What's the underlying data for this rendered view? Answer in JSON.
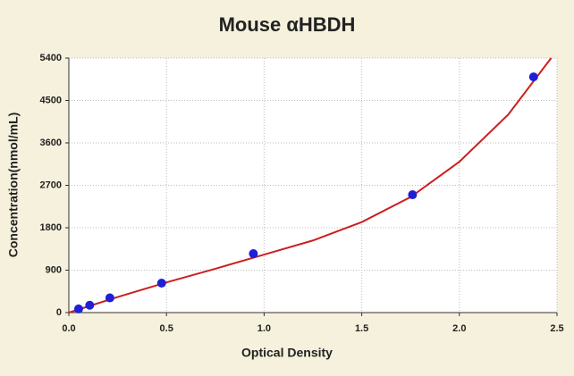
{
  "chart_data": {
    "type": "scatter",
    "title": "Mouse αHBDH",
    "x_label": "Optical Density",
    "y_label": "Concentration(nmol/mL)",
    "series": [
      {
        "color": "#1f1fd6",
        "x": [
          0.05,
          0.107,
          0.21,
          0.475,
          0.945,
          1.76,
          2.38
        ],
        "values": [
          78,
          156,
          312,
          625,
          1250,
          2500,
          5000
        ]
      }
    ],
    "curve": {
      "color": "#cc1f1f",
      "x": [
        0,
        0.25,
        0.5,
        0.75,
        1.0,
        1.25,
        1.5,
        1.75,
        2.0,
        2.25,
        2.47
      ],
      "values": [
        0,
        330,
        640,
        930,
        1230,
        1530,
        1920,
        2450,
        3200,
        4200,
        5400
      ]
    },
    "xlim": [
      0,
      2.5
    ],
    "ylim": [
      0,
      5400
    ],
    "xticks": [
      {
        "value": 0,
        "label": "0.0"
      },
      0.5,
      {
        "value": 1,
        "label": "1.0"
      },
      1.5,
      {
        "value": 2,
        "label": "2.0"
      },
      2.5
    ],
    "yticks": [
      0,
      900,
      1800,
      2700,
      3600,
      4500,
      5400
    ],
    "grid": true
  }
}
